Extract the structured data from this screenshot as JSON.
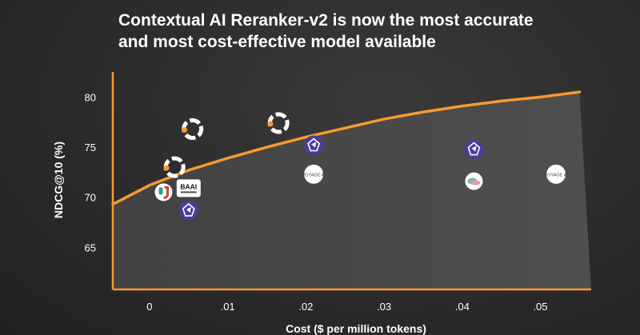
{
  "title_line1": "Contextual AI Reranker-v2 is now the most accurate",
  "title_line2": "and most cost-effective model available",
  "chart_data": {
    "type": "scatter",
    "title": "Contextual AI Reranker-v2 is now the most accurate and most cost-effective model available",
    "xlabel": "Cost ($ per million tokens)",
    "ylabel": "NDCG@10 (%)",
    "xlim": [
      -0.0047,
      0.0565
    ],
    "ylim": [
      60.8,
      82.5
    ],
    "x_ticks": [
      0,
      0.01,
      0.02,
      0.03,
      0.04,
      0.05
    ],
    "x_tick_labels": [
      "0",
      ".01",
      ".02",
      ".03",
      ".04",
      ".05"
    ],
    "y_ticks": [
      65,
      70,
      75,
      80
    ],
    "y_tick_labels": [
      "65",
      "70",
      "75",
      "80"
    ],
    "grid": false,
    "frontier": {
      "x": [
        -0.0047,
        0.0,
        0.005,
        0.01,
        0.015,
        0.02,
        0.025,
        0.03,
        0.035,
        0.04,
        0.045,
        0.05,
        0.055
      ],
      "y": [
        69.3,
        71.2,
        72.7,
        73.9,
        75.0,
        76.0,
        76.9,
        77.8,
        78.5,
        79.1,
        79.6,
        80.0,
        80.5
      ]
    },
    "points": [
      {
        "icon": "contextual-logo-icon",
        "x": 0.0055,
        "y": 76.8
      },
      {
        "icon": "contextual-logo-icon",
        "x": 0.0032,
        "y": 73.0
      },
      {
        "icon": "contextual-logo-icon",
        "x": 0.0165,
        "y": 77.4
      },
      {
        "icon": "jina-logo-icon",
        "x": 0.0018,
        "y": 70.5
      },
      {
        "icon": "baai-logo-icon",
        "x": 0.005,
        "y": 70.9,
        "label": "BAAI"
      },
      {
        "icon": "cohere-logo-icon",
        "x": 0.005,
        "y": 68.7
      },
      {
        "icon": "cohere-logo-icon",
        "x": 0.021,
        "y": 75.2
      },
      {
        "icon": "cohere-logo-icon",
        "x": 0.0415,
        "y": 74.8
      },
      {
        "icon": "voyage-logo-icon",
        "x": 0.021,
        "y": 72.3,
        "label": "VOYAGE AI"
      },
      {
        "icon": "voyage-logo-icon",
        "x": 0.052,
        "y": 72.3,
        "label": "VOYAGE AI"
      },
      {
        "icon": "mixedbread-logo-icon",
        "x": 0.0415,
        "y": 71.6
      }
    ]
  },
  "colors": {
    "accent": "#f59b2e",
    "axis": "#f59b2e",
    "area": "#4f4f4f",
    "text": "#ffffff",
    "cohere": "#4a3d9a",
    "jina": "#d44343",
    "jina_teal": "#2a9d8f"
  }
}
